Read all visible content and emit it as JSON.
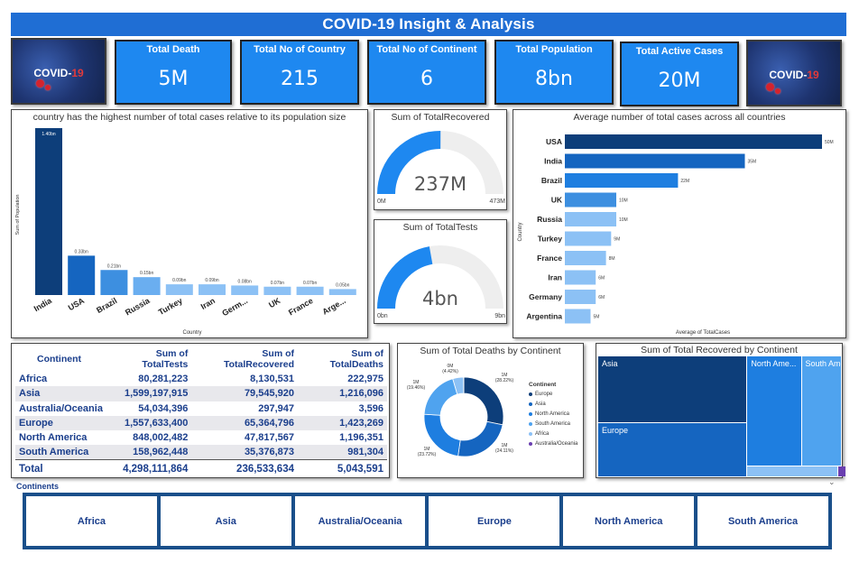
{
  "header": {
    "title": "COVID-19  Insight & Analysis"
  },
  "logo": {
    "text": "COVID-",
    "num": "19"
  },
  "kpis": [
    {
      "label": "Total Death",
      "value": "5M"
    },
    {
      "label": "Total No of Country",
      "value": "215"
    },
    {
      "label": "Total No of Continent",
      "value": "6"
    },
    {
      "label": "Total Population",
      "value": "8bn"
    },
    {
      "label": "Total Active Cases",
      "value": "20M"
    }
  ],
  "colors": {
    "accent": "#1e88f0",
    "title_bar": "#1f6ed4",
    "dark_navy": "#0d3e7a",
    "slicer_border": "#1a4f8a"
  },
  "chart_data": [
    {
      "type": "bar",
      "title": "country has the highest number of total cases relative to its population size",
      "xlabel": "Country",
      "ylabel": "Sum of Population",
      "categories": [
        "India",
        "USA",
        "Brazil",
        "Russia",
        "Turkey",
        "Iran",
        "Germ...",
        "UK",
        "France",
        "Arge..."
      ],
      "values": [
        1.4,
        0.33,
        0.21,
        0.15,
        0.09,
        0.09,
        0.08,
        0.07,
        0.07,
        0.05
      ],
      "value_labels": [
        "1.40bn",
        "0.33bn",
        "0.21bn",
        "0.15bn",
        "0.09bn",
        "0.09bn",
        "0.08bn",
        "0.07bn",
        "0.07bn",
        "0.05bn"
      ],
      "colors": [
        "#0d3e7a",
        "#1565c0",
        "#3d8fe0",
        "#6aaef0",
        "#8cc1f5",
        "#8cc1f5",
        "#8cc1f5",
        "#8cc1f5",
        "#8cc1f5",
        "#8cc1f5"
      ]
    },
    {
      "type": "gauge",
      "title": "Sum of TotalRecovered",
      "value": 237,
      "min": 0,
      "max": 473,
      "value_label": "237M",
      "min_label": "0M",
      "max_label": "473M"
    },
    {
      "type": "gauge",
      "title": "Sum of TotalTests",
      "value": 4,
      "min": 0,
      "max": 9,
      "value_label": "4bn",
      "min_label": "0bn",
      "max_label": "9bn"
    },
    {
      "type": "bar",
      "orientation": "horizontal",
      "title": "Average number of total cases across all countries",
      "xlabel": "Average of TotalCases",
      "ylabel": "Country",
      "categories": [
        "USA",
        "India",
        "Brazil",
        "UK",
        "Russia",
        "Turkey",
        "France",
        "Iran",
        "Germany",
        "Argentina"
      ],
      "values": [
        50,
        35,
        22,
        10,
        10,
        9,
        8,
        6,
        6,
        5
      ],
      "value_labels": [
        "50M",
        "35M",
        "22M",
        "10M",
        "10M",
        "9M",
        "8M",
        "6M",
        "6M",
        "5M"
      ],
      "colors": [
        "#0d3e7a",
        "#1565c0",
        "#1e7ee0",
        "#3d8fe0",
        "#8cc1f5",
        "#8cc1f5",
        "#8cc1f5",
        "#8cc1f5",
        "#8cc1f5",
        "#8cc1f5"
      ]
    },
    {
      "type": "pie",
      "donut": true,
      "title": "Sum of Total Deaths by Continent",
      "legend_title": "Continent",
      "categories": [
        "Europe",
        "Asia",
        "North America",
        "South America",
        "Africa",
        "Australia/Oceania"
      ],
      "values": [
        28.22,
        24.11,
        23.72,
        19.46,
        4.42,
        0.07
      ],
      "slice_labels": [
        "1M (28.22%)",
        "1M (24.11%)",
        "1M (23.72%)",
        "1M (19.46%)",
        "0M (4.42%)",
        "0M"
      ],
      "colors": [
        "#0d3e7a",
        "#1565c0",
        "#1e7ee0",
        "#4fa3ef",
        "#8cc1f5",
        "#6a3fb0"
      ]
    },
    {
      "type": "treemap",
      "title": "Sum of Total Recovered by Continent",
      "categories": [
        "Asia",
        "Europe",
        "North Ame...",
        "South Ame...",
        "Africa",
        "Australia/Oceania"
      ],
      "values": [
        79545920,
        65364796,
        47817567,
        35376873,
        8130531,
        297947
      ],
      "colors": [
        "#0d3e7a",
        "#1565c0",
        "#1e7ee0",
        "#4fa3ef",
        "#8cc1f5",
        "#6a3fb0"
      ]
    }
  ],
  "table": {
    "headers": [
      "Continent",
      "Sum of TotalTests",
      "Sum of TotalRecovered",
      "Sum of TotalDeaths"
    ],
    "rows": [
      [
        "Africa",
        "80,281,223",
        "8,130,531",
        "222,975"
      ],
      [
        "Asia",
        "1,599,197,915",
        "79,545,920",
        "1,216,096"
      ],
      [
        "Australia/Oceania",
        "54,034,396",
        "297,947",
        "3,596"
      ],
      [
        "Europe",
        "1,557,633,400",
        "65,364,796",
        "1,423,269"
      ],
      [
        "North America",
        "848,002,482",
        "47,817,567",
        "1,196,351"
      ],
      [
        "South America",
        "158,962,448",
        "35,376,873",
        "981,304"
      ]
    ],
    "total": [
      "Total",
      "4,298,111,864",
      "236,533,634",
      "5,043,591"
    ]
  },
  "slicer": {
    "title": "Continents",
    "options": [
      "Africa",
      "Asia",
      "Australia/Oceania",
      "Europe",
      "North America",
      "South America"
    ]
  }
}
